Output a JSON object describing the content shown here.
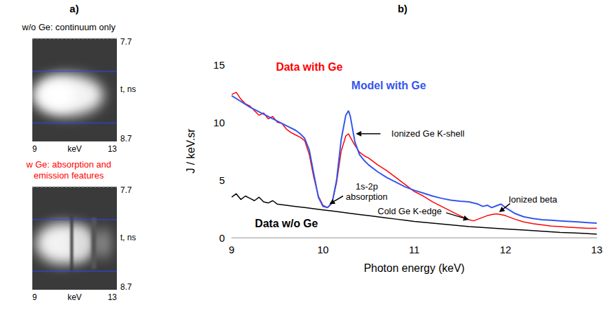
{
  "chart_data": [
    {
      "type": "image",
      "panel": "a)",
      "images": [
        {
          "title": "w/o Ge: continuum only",
          "color": "#000000",
          "x_label": "keV",
          "y_label": "t, ns",
          "xlim": [
            9,
            13
          ],
          "xticks": [
            9,
            13
          ],
          "ylim": [
            7.7,
            8.7
          ],
          "yticks": [
            7.7,
            8.7
          ]
        },
        {
          "title": "w Ge: absorption and emission features",
          "color": "#ff0000",
          "x_label": "keV",
          "y_label": "t, ns",
          "xlim": [
            9,
            13
          ],
          "xticks": [
            9,
            13
          ],
          "ylim": [
            7.7,
            8.7
          ],
          "yticks": [
            7.7,
            8.7
          ]
        }
      ]
    },
    {
      "type": "line",
      "panel": "b)",
      "x_label": "Photon energy (keV)",
      "y_label": "J / keV.sr",
      "xlim": [
        9,
        13
      ],
      "xticks": [
        9,
        10,
        11,
        12,
        13
      ],
      "ylim": [
        0,
        15
      ],
      "yticks": [
        0,
        5,
        10,
        15
      ],
      "grid": false,
      "series": [
        {
          "name": "Data with Ge",
          "color": "#ff0000",
          "label_at": [
            9.85,
            14.8
          ],
          "x": [
            9.0,
            9.05,
            9.1,
            9.15,
            9.2,
            9.25,
            9.3,
            9.35,
            9.4,
            9.45,
            9.5,
            9.55,
            9.6,
            9.65,
            9.7,
            9.75,
            9.8,
            9.85,
            9.9,
            9.95,
            10.0,
            10.05,
            10.1,
            10.15,
            10.2,
            10.25,
            10.28,
            10.3,
            10.35,
            10.4,
            10.45,
            10.5,
            10.6,
            10.7,
            10.8,
            10.9,
            11.0,
            11.1,
            11.2,
            11.3,
            11.4,
            11.5,
            11.6,
            11.65,
            11.7,
            11.8,
            11.85,
            11.9,
            11.95,
            12.0,
            12.1,
            12.2,
            12.3,
            12.4,
            12.5,
            12.6,
            12.7,
            12.8,
            12.9,
            13.0
          ],
          "values": [
            12.4,
            12.6,
            12.0,
            11.6,
            11.4,
            11.0,
            10.6,
            10.8,
            10.3,
            10.5,
            10.0,
            9.9,
            9.4,
            9.1,
            8.9,
            8.7,
            8.4,
            7.2,
            5.2,
            3.6,
            2.8,
            2.6,
            3.0,
            4.8,
            7.5,
            8.8,
            9.0,
            8.7,
            8.0,
            7.4,
            7.1,
            6.9,
            6.3,
            5.8,
            5.2,
            4.6,
            4.0,
            3.6,
            3.1,
            2.7,
            2.3,
            1.9,
            1.55,
            1.45,
            1.6,
            1.9,
            2.0,
            2.05,
            2.0,
            1.9,
            1.6,
            1.35,
            1.2,
            1.1,
            1.0,
            0.95,
            0.9,
            0.85,
            0.8,
            0.8
          ]
        },
        {
          "name": "Model with Ge",
          "color": "#3355ee",
          "label_at": [
            10.72,
            13.2
          ],
          "x": [
            9.0,
            9.1,
            9.2,
            9.3,
            9.4,
            9.5,
            9.6,
            9.7,
            9.75,
            9.8,
            9.85,
            9.9,
            9.95,
            10.0,
            10.05,
            10.1,
            10.15,
            10.2,
            10.25,
            10.28,
            10.3,
            10.35,
            10.4,
            10.45,
            10.5,
            10.6,
            10.7,
            10.8,
            10.9,
            11.0,
            11.1,
            11.2,
            11.3,
            11.4,
            11.5,
            11.6,
            11.7,
            11.75,
            11.8,
            11.85,
            11.9,
            11.95,
            12.0,
            12.1,
            12.2,
            12.3,
            12.4,
            12.5,
            12.6,
            12.7,
            12.8,
            12.9,
            13.0
          ],
          "values": [
            12.3,
            11.8,
            11.3,
            10.9,
            10.5,
            10.1,
            9.7,
            9.3,
            9.0,
            8.6,
            7.6,
            5.5,
            3.5,
            2.7,
            2.6,
            3.0,
            5.0,
            8.5,
            10.6,
            11.0,
            10.5,
            8.3,
            7.2,
            6.7,
            6.3,
            5.7,
            5.2,
            4.8,
            4.4,
            4.1,
            3.85,
            3.6,
            3.4,
            3.25,
            3.15,
            3.1,
            2.9,
            2.7,
            2.8,
            2.6,
            2.75,
            2.9,
            2.6,
            2.1,
            1.8,
            1.65,
            1.55,
            1.5,
            1.45,
            1.4,
            1.35,
            1.3,
            1.25
          ]
        },
        {
          "name": "Data w/o Ge",
          "color": "#000000",
          "label_at": [
            9.6,
            1.25
          ],
          "x": [
            9.0,
            9.05,
            9.1,
            9.15,
            9.2,
            9.25,
            9.3,
            9.35,
            9.4,
            9.45,
            9.5,
            9.6,
            9.7,
            9.8,
            9.9,
            10.0,
            10.1,
            10.2,
            10.3,
            10.4,
            10.5,
            10.6,
            10.7,
            10.8,
            10.9,
            11.0,
            11.2,
            11.4,
            11.6,
            11.8,
            12.0,
            12.2,
            12.4,
            12.6,
            12.8,
            13.0
          ],
          "values": [
            3.5,
            3.8,
            3.3,
            3.6,
            3.4,
            3.2,
            3.5,
            3.1,
            3.0,
            3.2,
            2.9,
            2.8,
            2.7,
            2.6,
            2.5,
            2.4,
            2.3,
            2.2,
            2.1,
            2.0,
            1.9,
            1.8,
            1.7,
            1.6,
            1.5,
            1.4,
            1.25,
            1.1,
            0.95,
            0.85,
            0.75,
            0.65,
            0.55,
            0.45,
            0.38,
            0.3
          ]
        }
      ],
      "annotations": [
        {
          "text": "Ionized Ge K-shell",
          "at": [
            11.15,
            9.0
          ],
          "arrow_from": [
            10.63,
            9.0
          ],
          "arrow_to": [
            10.36,
            9.0
          ]
        },
        {
          "text": "1s-2p\nabsorption",
          "at": [
            10.48,
            4.0
          ],
          "arrow_from": [
            10.22,
            3.6
          ],
          "arrow_to": [
            10.07,
            2.9
          ]
        },
        {
          "text": "Cold Ge K-edge",
          "at": [
            10.95,
            2.3
          ],
          "arrow_from": [
            11.35,
            2.15
          ],
          "arrow_to": [
            11.6,
            1.55
          ]
        },
        {
          "text": "Ionized beta",
          "at": [
            12.3,
            3.3
          ],
          "arrow_from": [
            12.05,
            2.95
          ],
          "arrow_to": [
            11.93,
            2.2
          ]
        }
      ]
    }
  ]
}
